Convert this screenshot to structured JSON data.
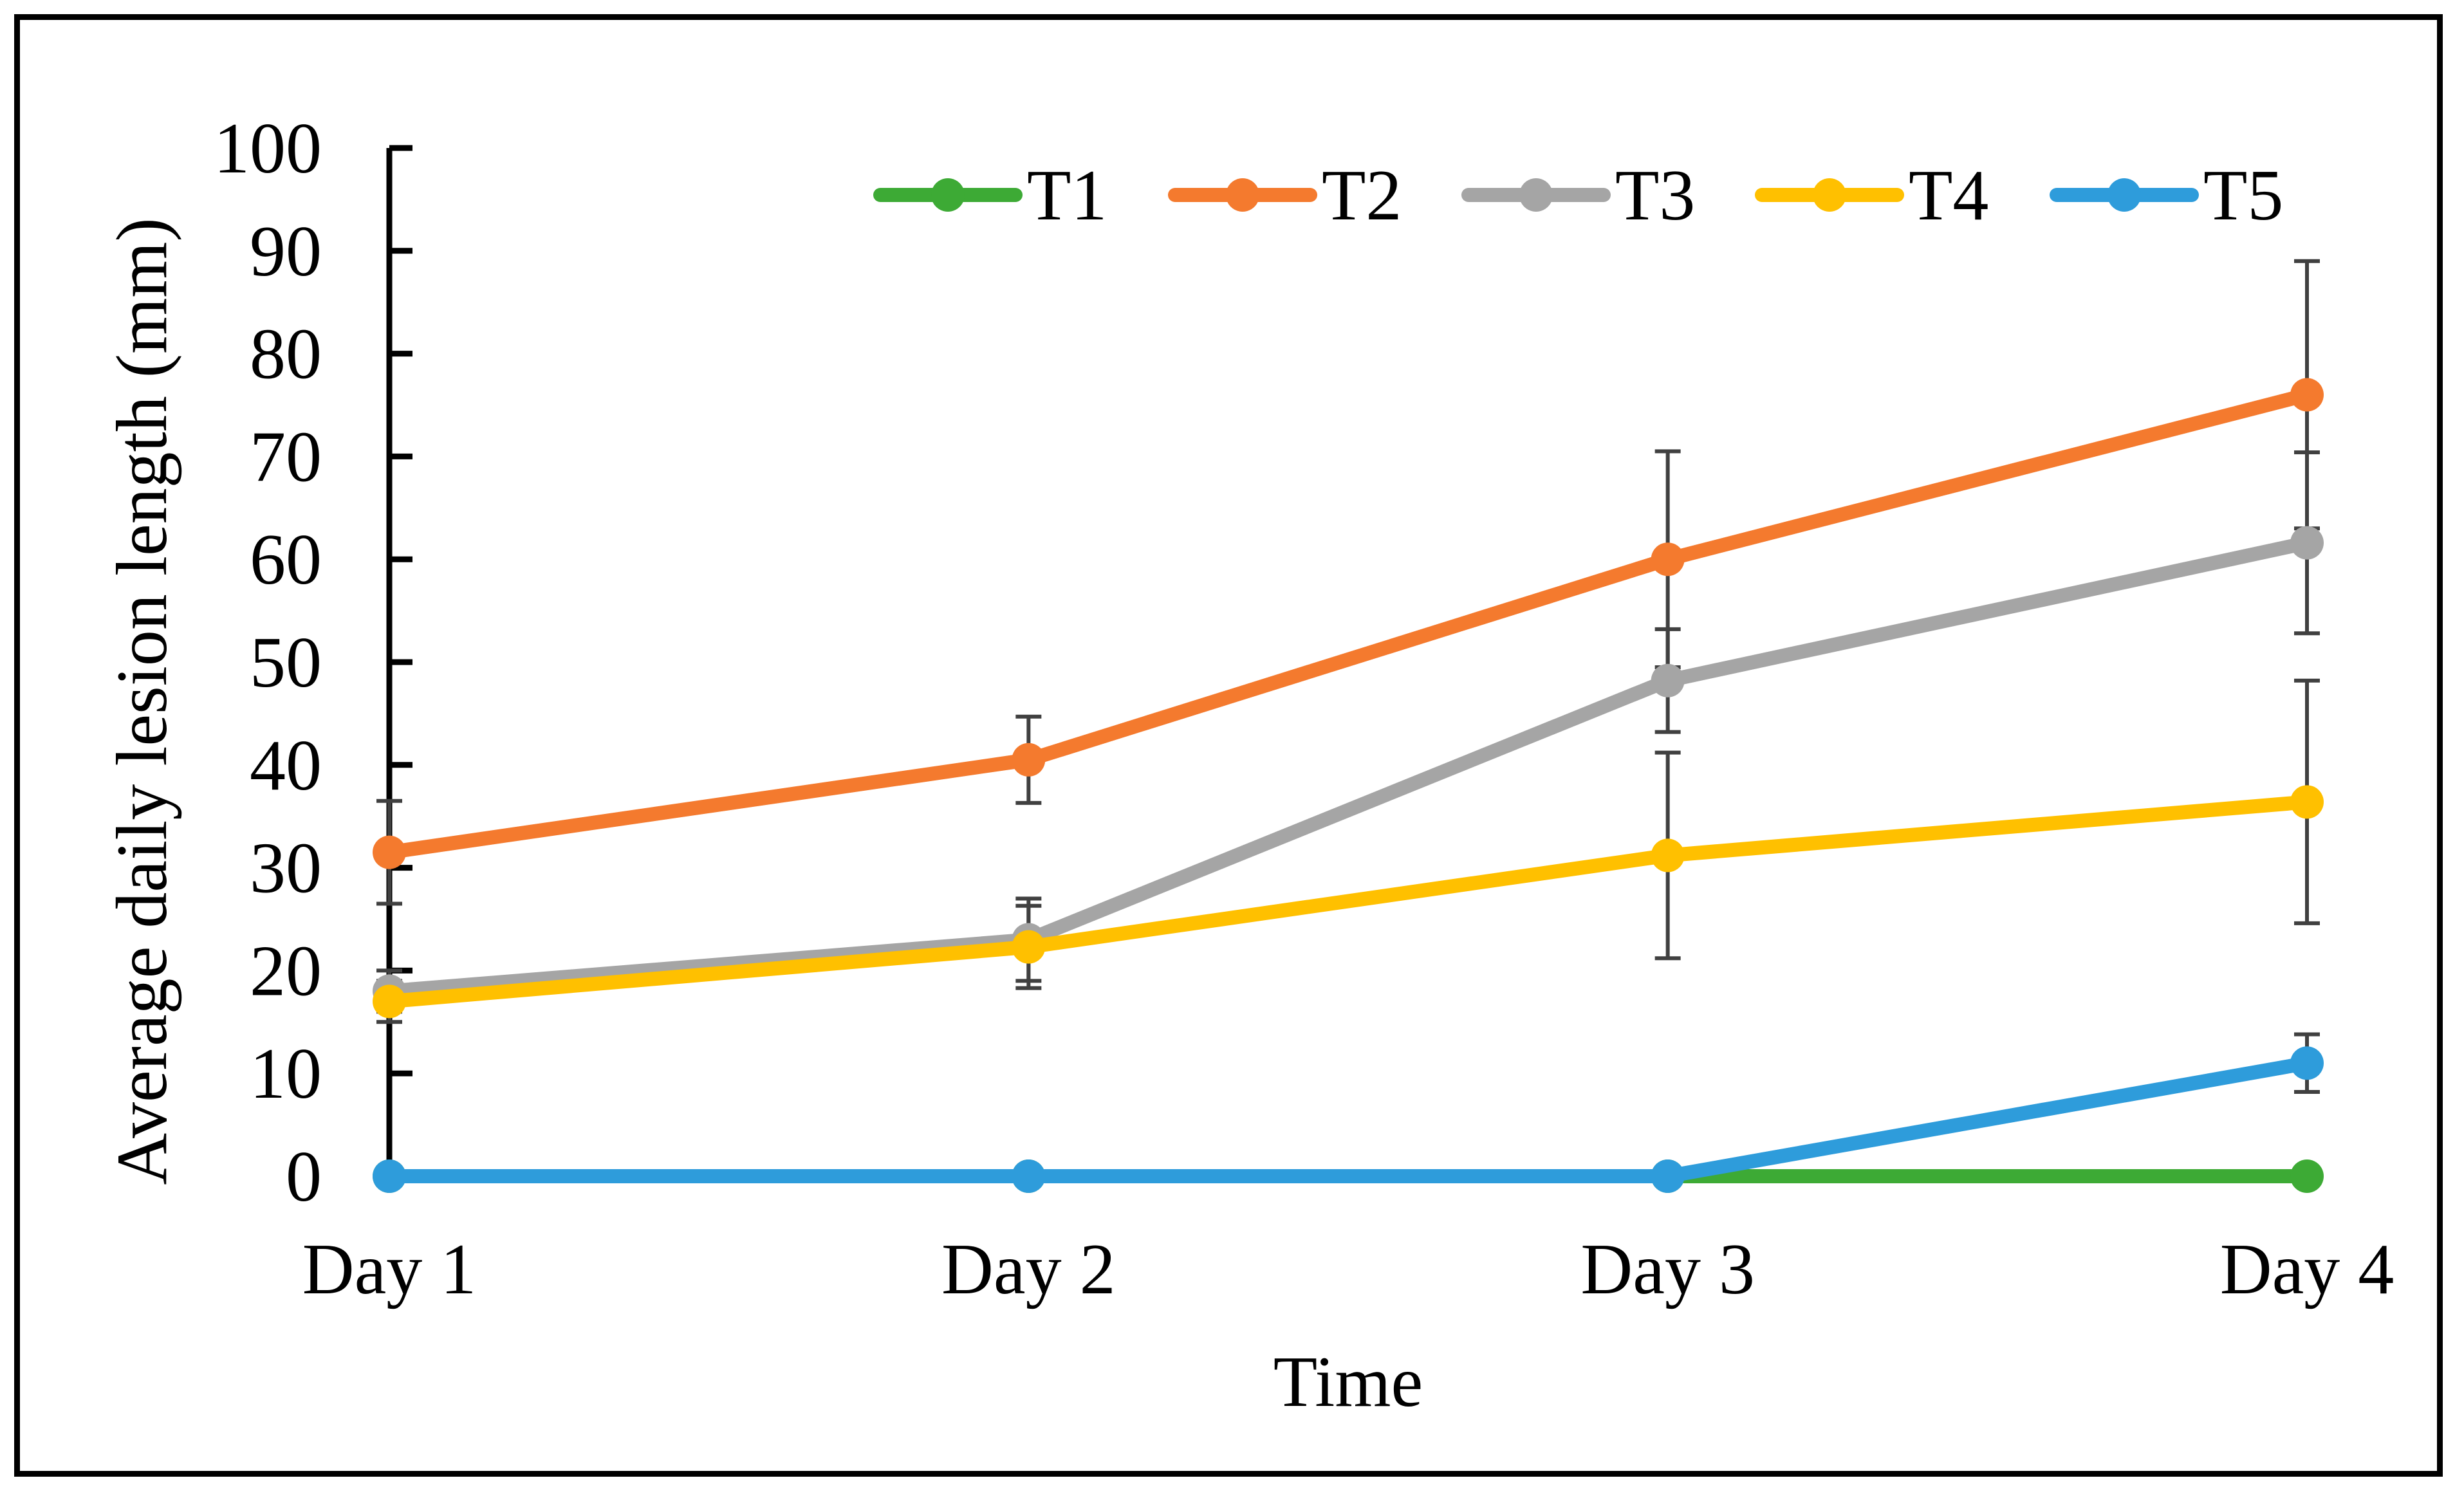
{
  "chart_data": {
    "type": "line",
    "title": "",
    "xlabel": "Time",
    "ylabel": "Average daily lesion length (mm)",
    "categories": [
      "Day 1",
      "Day 2",
      "Day 3",
      "Day 4"
    ],
    "ylim": [
      0,
      100
    ],
    "yticks": [
      0,
      10,
      20,
      30,
      40,
      50,
      60,
      70,
      80,
      90,
      100
    ],
    "grid": false,
    "legend_position": "top",
    "series": [
      {
        "name": "T1",
        "color": "#3DAA35",
        "values": [
          0,
          0,
          0,
          0
        ],
        "errors": [
          0,
          0,
          0,
          0
        ]
      },
      {
        "name": "T2",
        "color": "#F47A2E",
        "values": [
          31.5,
          40.5,
          60,
          76
        ],
        "errors": [
          5,
          4.2,
          10.5,
          13
        ]
      },
      {
        "name": "T3",
        "color": "#A5A5A5",
        "values": [
          18,
          23,
          48.2,
          61.6
        ],
        "errors": [
          2,
          4,
          5,
          8.8
        ]
      },
      {
        "name": "T4",
        "color": "#FFC000",
        "values": [
          17,
          22.3,
          31.2,
          36.4
        ],
        "errors": [
          2,
          4,
          10,
          11.8
        ]
      },
      {
        "name": "T5",
        "color": "#2E9CDB",
        "values": [
          0,
          0,
          0,
          11
        ],
        "errors": [
          0,
          0,
          0,
          2.8
        ]
      }
    ]
  }
}
